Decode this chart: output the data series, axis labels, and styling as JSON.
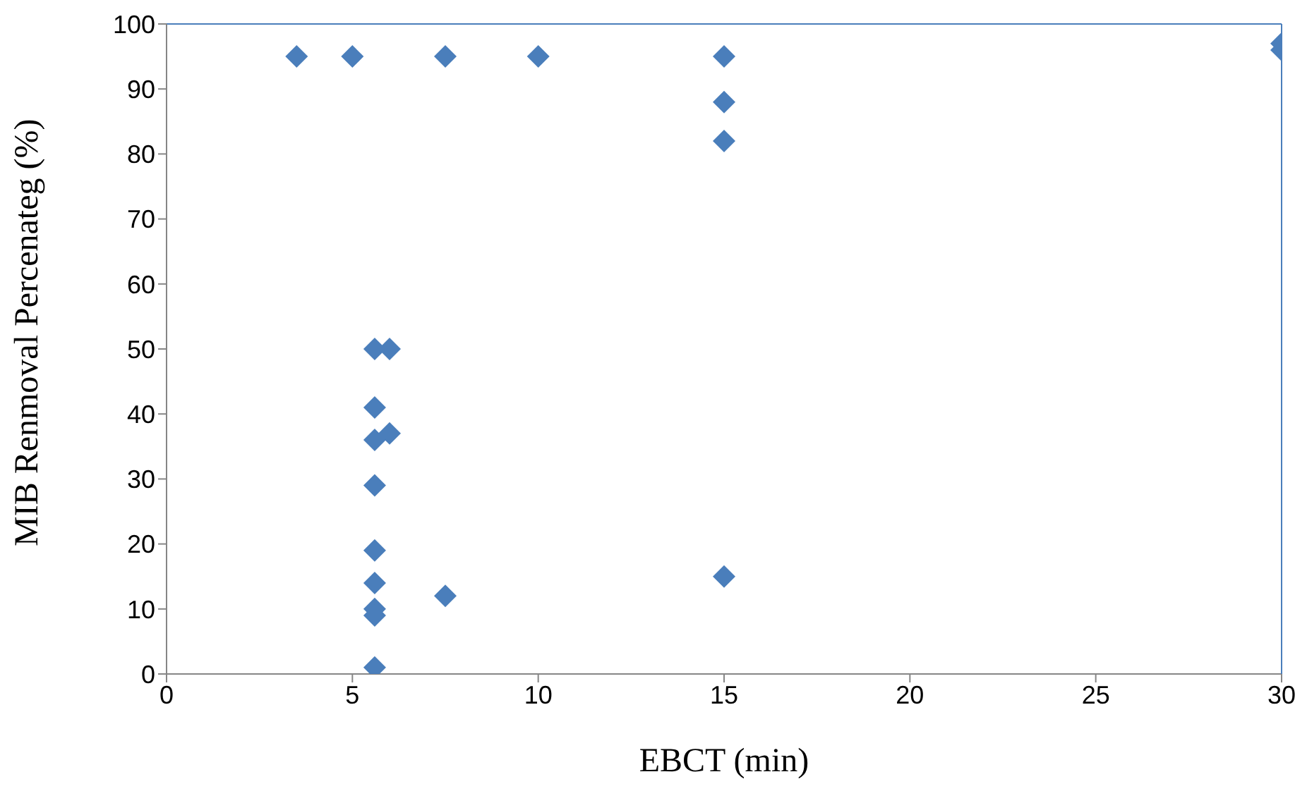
{
  "chart_data": {
    "type": "scatter",
    "xlabel": "EBCT (min)",
    "ylabel": "MIB Renmoval Percenateg (%)",
    "x": [
      3.5,
      5,
      7.5,
      10,
      15,
      15,
      15,
      15,
      30,
      30,
      5.6,
      5.6,
      5.6,
      5.6,
      5.6,
      5.6,
      5.6,
      5.6,
      5.6,
      6,
      6,
      7.5
    ],
    "values": [
      95,
      95,
      95,
      95,
      95,
      88,
      82,
      15,
      97,
      96,
      50,
      41,
      36,
      29,
      19,
      14,
      10,
      9,
      1,
      50,
      37,
      12
    ],
    "color": "#4a7ebb",
    "marker": "diamond",
    "xlim": [
      0,
      30
    ],
    "xticks": [
      0,
      5,
      10,
      15,
      20,
      25,
      30
    ],
    "ylim": [
      0,
      100
    ],
    "yticks": [
      0,
      10,
      20,
      30,
      40,
      50,
      60,
      70,
      80,
      90,
      100
    ]
  }
}
